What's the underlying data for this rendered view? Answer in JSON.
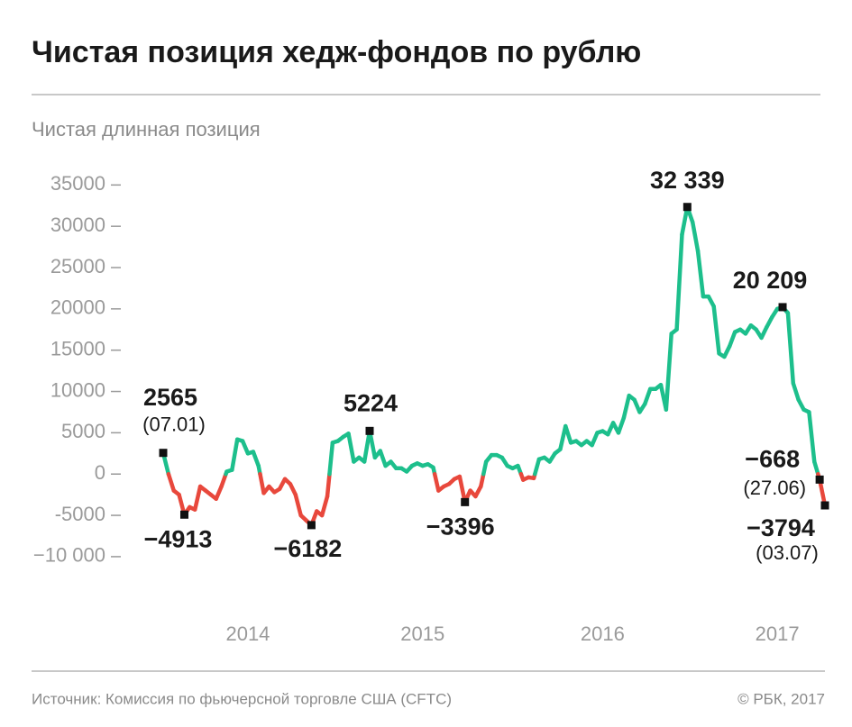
{
  "chart_data": {
    "type": "line",
    "title": "Чистая позиция хедж-фондов по рублю",
    "subtitle": "Чистая длинная позиция",
    "source": "Источник: Комиссия по фьючерсной торговле США (CFTC)",
    "copyright": "© РБК, 2017",
    "positive_color": "#1dbf8c",
    "negative_color": "#e8483c",
    "ylim": [
      -13500,
      37000
    ],
    "yticks": [
      35000,
      30000,
      25000,
      20000,
      15000,
      10000,
      5000,
      0,
      -5000,
      {
        "value": -10000,
        "label": "−10 000"
      }
    ],
    "categories": [
      null,
      null,
      null,
      null,
      null,
      null,
      null,
      null,
      null,
      null,
      null,
      null,
      null,
      null,
      null,
      null,
      "2014",
      null,
      null,
      null,
      null,
      null,
      null,
      null,
      null,
      null,
      null,
      null,
      null,
      null,
      null,
      null,
      null,
      null,
      null,
      null,
      null,
      null,
      null,
      null,
      null,
      null,
      null,
      null,
      null,
      null,
      null,
      null,
      null,
      "2015",
      null,
      null,
      null,
      null,
      null,
      null,
      null,
      null,
      null,
      null,
      null,
      null,
      null,
      null,
      null,
      null,
      null,
      null,
      null,
      null,
      null,
      null,
      null,
      null,
      null,
      null,
      null,
      null,
      null,
      null,
      null,
      null,
      null,
      "2016",
      null,
      null,
      null,
      null,
      null,
      null,
      null,
      null,
      null,
      null,
      null,
      null,
      null,
      null,
      null,
      null,
      null,
      null,
      null,
      null,
      null,
      null,
      null,
      null,
      null,
      null,
      null,
      null,
      null,
      null,
      null,
      null,
      "2017",
      null,
      null,
      null,
      null,
      null,
      null,
      null,
      null,
      null
    ],
    "values": [
      2565,
      0,
      -2000,
      -2500,
      -4913,
      -4000,
      -4300,
      -1500,
      -2000,
      -2500,
      -3000,
      -1500,
      300,
      500,
      4200,
      4000,
      2500,
      2700,
      1000,
      -2300,
      -1500,
      -2200,
      -1800,
      -600,
      -1200,
      -2500,
      -5000,
      -5600,
      -6182,
      -4500,
      -5000,
      -2700,
      3800,
      4000,
      4500,
      4900,
      1500,
      2000,
      1500,
      5224,
      2000,
      2800,
      1000,
      1500,
      700,
      700,
      300,
      1000,
      1300,
      1000,
      1200,
      800,
      -2000,
      -1500,
      -1200,
      -600,
      -300,
      -3396,
      -2000,
      -2700,
      -1500,
      1500,
      2300,
      2300,
      2000,
      1000,
      700,
      1000,
      -700,
      -400,
      -500,
      1800,
      2000,
      1500,
      2500,
      3000,
      5800,
      3800,
      4000,
      3500,
      4000,
      3500,
      5000,
      5200,
      4800,
      6200,
      5000,
      6800,
      9500,
      9000,
      7500,
      8500,
      10300,
      10300,
      10800,
      7800,
      17000,
      17500,
      29000,
      32339,
      30500,
      27000,
      21500,
      21500,
      20300,
      14600,
      14200,
      15500,
      17200,
      17500,
      17000,
      18000,
      17500,
      16500,
      17800,
      19000,
      20000,
      20209,
      19500,
      11000,
      9000,
      7800,
      7500,
      1500,
      -668,
      -3794
    ],
    "value_labels": [
      "2565",
      null,
      null,
      null,
      "−4913",
      null,
      null,
      null,
      null,
      null,
      null,
      null,
      null,
      null,
      null,
      null,
      null,
      null,
      null,
      null,
      null,
      null,
      null,
      null,
      null,
      null,
      null,
      null,
      "−6182",
      null,
      null,
      null,
      null,
      null,
      null,
      null,
      null,
      null,
      null,
      "5224",
      null,
      null,
      null,
      null,
      null,
      null,
      null,
      null,
      null,
      null,
      null,
      null,
      null,
      null,
      null,
      null,
      null,
      "−3396",
      null,
      null,
      null,
      null,
      null,
      null,
      null,
      null,
      null,
      null,
      null,
      null,
      null,
      null,
      null,
      null,
      null,
      null,
      null,
      null,
      null,
      null,
      null,
      null,
      null,
      null,
      null,
      null,
      null,
      null,
      null,
      null,
      null,
      null,
      null,
      null,
      null,
      null,
      null,
      null,
      null,
      "32 339",
      null,
      null,
      null,
      null,
      null,
      null,
      null,
      null,
      null,
      null,
      null,
      null,
      null,
      null,
      null,
      null,
      null,
      "20 209",
      null,
      null,
      null,
      null,
      null,
      null,
      "−668",
      "−3794"
    ],
    "date_labels": [
      "(07.01)",
      null,
      null,
      null,
      null,
      null,
      null,
      null,
      null,
      null,
      null,
      null,
      null,
      null,
      null,
      null,
      null,
      null,
      null,
      null,
      null,
      null,
      null,
      null,
      null,
      null,
      null,
      null,
      null,
      null,
      null,
      null,
      null,
      null,
      null,
      null,
      null,
      null,
      null,
      null,
      null,
      null,
      null,
      null,
      null,
      null,
      null,
      null,
      null,
      null,
      null,
      null,
      null,
      null,
      null,
      null,
      null,
      null,
      null,
      null,
      null,
      null,
      null,
      null,
      null,
      null,
      null,
      null,
      null,
      null,
      null,
      null,
      null,
      null,
      null,
      null,
      null,
      null,
      null,
      null,
      null,
      null,
      null,
      null,
      null,
      null,
      null,
      null,
      null,
      null,
      null,
      null,
      null,
      null,
      null,
      null,
      null,
      null,
      null,
      null,
      null,
      null,
      null,
      null,
      null,
      null,
      null,
      null,
      null,
      null,
      null,
      null,
      null,
      null,
      null,
      null,
      null,
      null,
      null,
      null,
      null,
      null,
      null,
      null,
      "(27.06)",
      "(03.07)"
    ]
  }
}
